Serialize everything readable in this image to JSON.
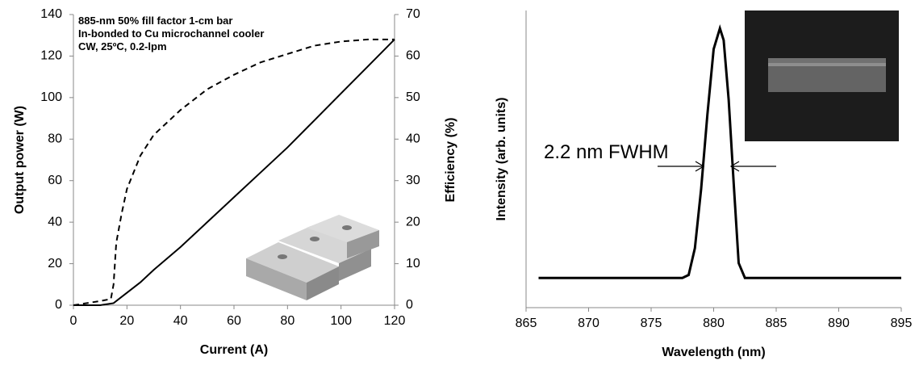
{
  "chart_data": [
    {
      "type": "line",
      "xlabel": "Current (A)",
      "ylabel": "Output power (W)",
      "y2label": "Efficiency (%)",
      "annotation": [
        "885-nm 50% fill factor 1-cm bar",
        "In-bonded to Cu microchannel cooler",
        "CW, 25ºC, 0.2-lpm"
      ],
      "xlim": [
        0,
        120
      ],
      "xticks": [
        0,
        20,
        40,
        60,
        80,
        100,
        120
      ],
      "ylim": [
        0,
        140
      ],
      "yticks": [
        0,
        20,
        40,
        60,
        80,
        100,
        120,
        140
      ],
      "y2lim": [
        0,
        70
      ],
      "y2ticks": [
        0,
        10,
        20,
        30,
        40,
        50,
        60,
        70
      ],
      "series": [
        {
          "color": "#000000",
          "line_style": "solid",
          "x": [
            0,
            10,
            15,
            18,
            20,
            25,
            30,
            40,
            50,
            60,
            70,
            80,
            90,
            100,
            110,
            120
          ],
          "values": [
            0,
            0,
            1,
            4,
            6,
            11,
            17,
            28,
            40,
            52,
            64,
            76,
            89,
            102,
            115,
            128
          ]
        },
        {
          "color": "#000000",
          "line_style": "dashed",
          "axis": "y2",
          "x": [
            0,
            10,
            14,
            15,
            16,
            18,
            20,
            25,
            30,
            40,
            50,
            60,
            70,
            80,
            90,
            100,
            110,
            120
          ],
          "values": [
            0,
            1,
            1.5,
            5,
            15,
            22,
            28,
            36,
            41,
            47,
            52,
            55.5,
            58.5,
            60.5,
            62.5,
            63.5,
            64,
            64
          ]
        }
      ]
    },
    {
      "type": "line",
      "xlabel": "Wavelength (nm)",
      "ylabel": "Intensity (arb. units)",
      "annotation": "2.2 nm FWHM",
      "xlim": [
        865,
        895
      ],
      "xticks": [
        865,
        870,
        875,
        880,
        885,
        890,
        895
      ],
      "ylim": [
        0,
        1
      ],
      "series": [
        {
          "color": "#000000",
          "line_style": "solid",
          "x": [
            866,
            870,
            875,
            877.5,
            878,
            878.5,
            879,
            879.5,
            880,
            880.5,
            880.8,
            881.2,
            881.6,
            882,
            882.5,
            885,
            890,
            895
          ],
          "values": [
            0.1,
            0.1,
            0.1,
            0.1,
            0.11,
            0.2,
            0.4,
            0.65,
            0.87,
            0.94,
            0.9,
            0.7,
            0.42,
            0.15,
            0.1,
            0.1,
            0.1,
            0.1
          ]
        }
      ]
    }
  ]
}
